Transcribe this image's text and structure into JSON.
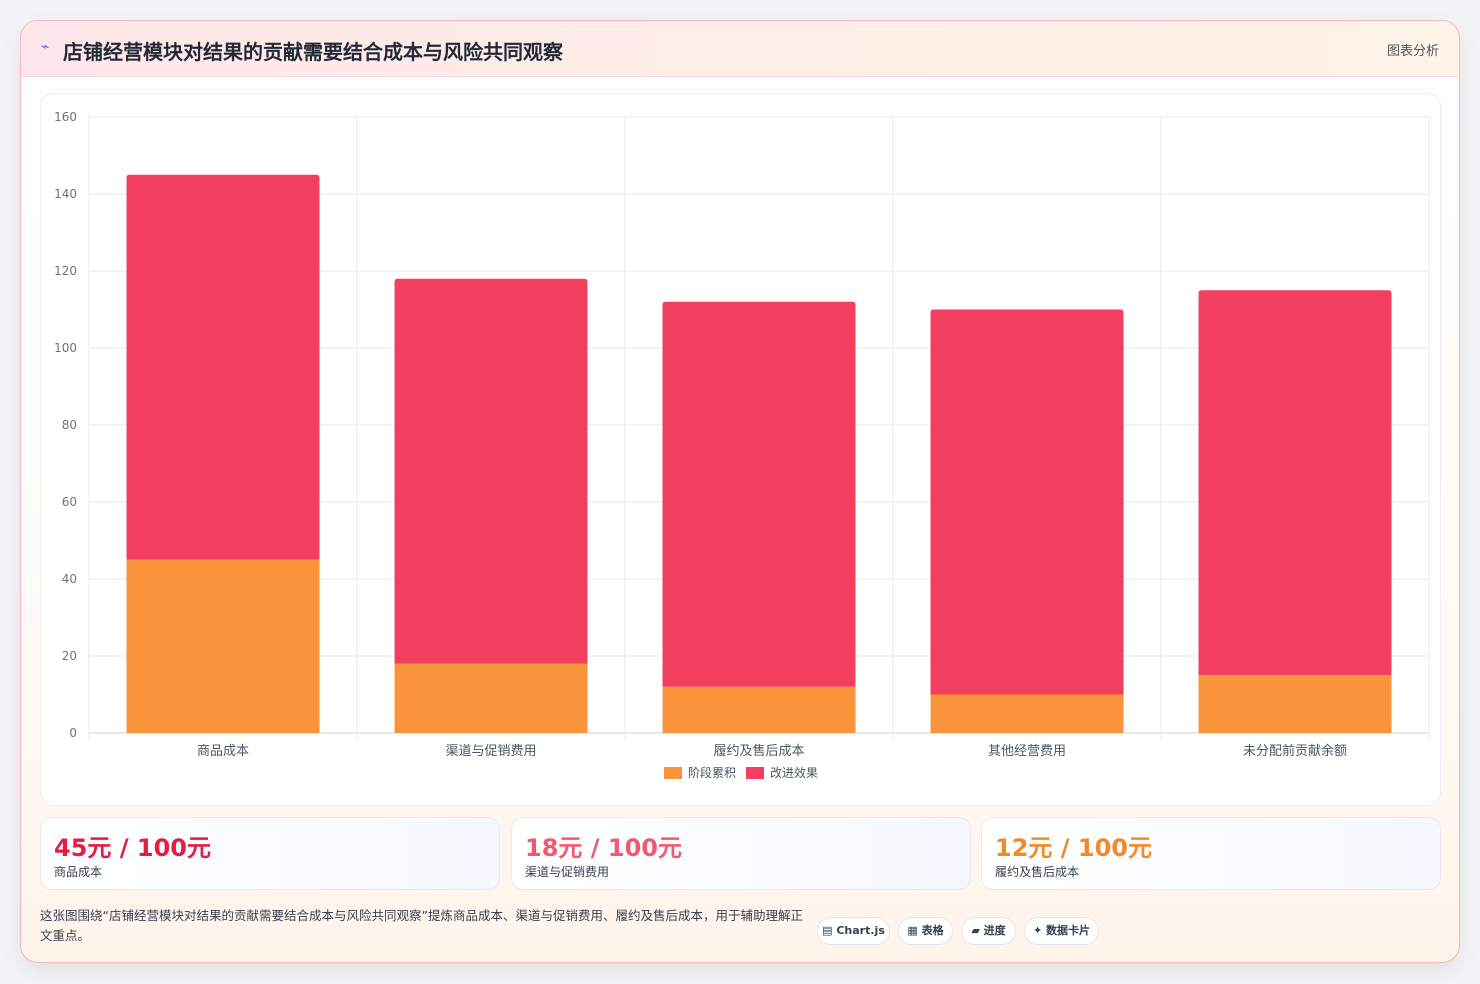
{
  "header": {
    "title": "店铺经营模块对结果的贡献需要结合成本与风险共同观察",
    "tag": "图表分析",
    "icon": "bird-icon"
  },
  "colors": {
    "stage": "#f9943b",
    "improve": "#f23f60",
    "accent_red": "#e11d48",
    "accent_pink": "#ef5a72",
    "accent_orange": "#f28a2c"
  },
  "chart_data": {
    "type": "bar",
    "stacked": true,
    "categories": [
      "商品成本",
      "渠道与促销费用",
      "履约及售后成本",
      "其他经营费用",
      "未分配前贡献余额"
    ],
    "series": [
      {
        "name": "阶段累积",
        "values": [
          45,
          18,
          12,
          10,
          15
        ]
      },
      {
        "name": "改进效果",
        "values": [
          100,
          100,
          100,
          100,
          100
        ]
      }
    ],
    "ylim": [
      0,
      160
    ],
    "yticks": [
      0,
      20,
      40,
      60,
      80,
      100,
      120,
      140,
      160
    ],
    "grid": true,
    "legend_position": "bottom"
  },
  "stats": [
    {
      "value": "45元 / 100元",
      "label": "商品成本"
    },
    {
      "value": "18元 / 100元",
      "label": "渠道与促销费用"
    },
    {
      "value": "12元 / 100元",
      "label": "履约及售后成本"
    }
  ],
  "note": "这张图围绕“店铺经营模块对结果的贡献需要结合成本与风险共同观察”提炼商品成本、渠道与促销费用、履约及售后成本，用于辅助理解正文重点。",
  "chips": [
    {
      "icon": "▤",
      "label": "Chart.js"
    },
    {
      "icon": "▦",
      "label": "表格"
    },
    {
      "icon": "▰",
      "label": "进度"
    },
    {
      "icon": "✦",
      "label": "数据卡片"
    }
  ]
}
